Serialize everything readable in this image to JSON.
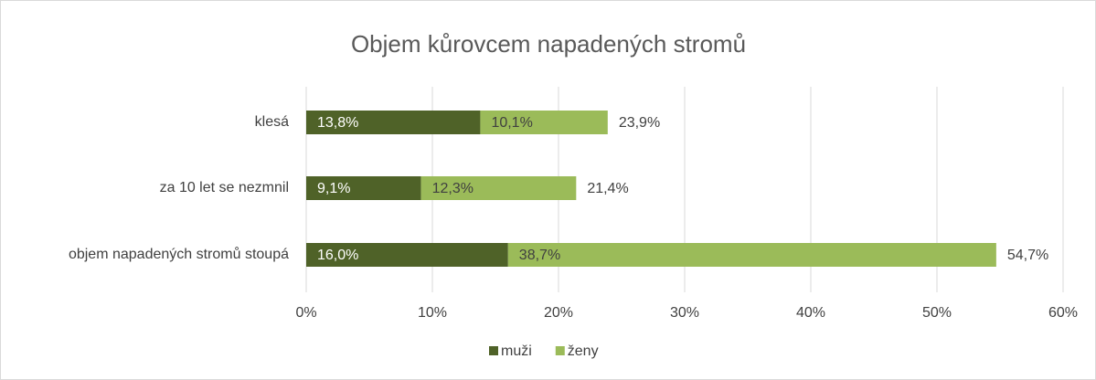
{
  "chart_data": {
    "type": "stacked_bar_horizontal",
    "title": "Objem kůrovcem napadených stromů",
    "categories": [
      "klesá",
      "za 10 let se nezmnil",
      "objem napadených stromů stoupá"
    ],
    "series": [
      {
        "name": "muži",
        "color": "#4f6228",
        "values": [
          13.8,
          9.1,
          16.0
        ],
        "value_labels": [
          "13,8%",
          "9,1%",
          "16,0%"
        ]
      },
      {
        "name": "ženy",
        "color": "#9bbb59",
        "values": [
          10.1,
          12.3,
          38.7
        ],
        "value_labels": [
          "10,1%",
          "12,3%",
          "38,7%"
        ]
      }
    ],
    "totals": [
      23.9,
      21.4,
      54.7
    ],
    "total_labels": [
      "23,9%",
      "21,4%",
      "54,7%"
    ],
    "xlim": [
      0,
      60
    ],
    "xticks": [
      {
        "value": 0,
        "label": "0%"
      },
      {
        "value": 10,
        "label": "10%"
      },
      {
        "value": 20,
        "label": "20%"
      },
      {
        "value": 30,
        "label": "30%"
      },
      {
        "value": 40,
        "label": "40%"
      },
      {
        "value": 50,
        "label": "50%"
      },
      {
        "value": 60,
        "label": "60%"
      }
    ],
    "grid": true,
    "legend": "bottom"
  }
}
